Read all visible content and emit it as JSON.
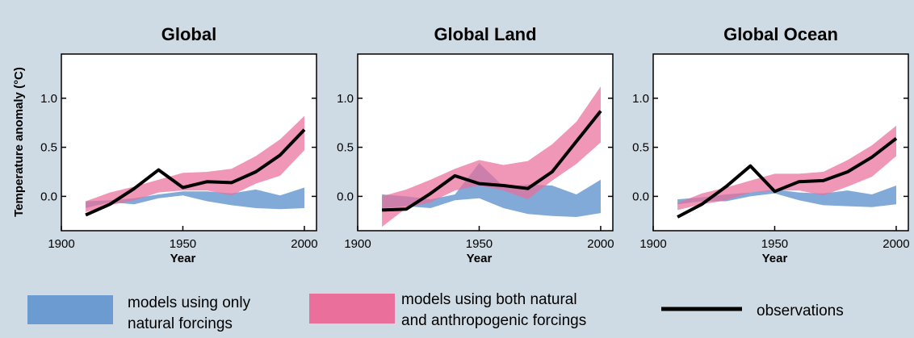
{
  "chart_data": {
    "type": "area",
    "shared": {
      "ylabel": "Temperature anomaly (°C)",
      "xlabel": "Year",
      "xlim": [
        1900,
        2005
      ],
      "ylim": [
        -0.35,
        1.45
      ],
      "xticks": [
        "1900",
        "1950",
        "2000"
      ],
      "yticks": [
        "0.0",
        "0.5",
        "1.0"
      ],
      "colors": {
        "background": "#cfdbe4",
        "natural_band": "#6b9bd1",
        "anthro_band": "#ea6f9b",
        "observations": "#000000"
      }
    },
    "legend": {
      "natural": [
        "models using only",
        "natural forcings"
      ],
      "anthro": [
        "models using both natural",
        "and anthropogenic forcings"
      ],
      "observations": "observations"
    },
    "panels": [
      {
        "title": "Global",
        "x": [
          1910,
          1920,
          1930,
          1940,
          1950,
          1960,
          1970,
          1980,
          1990,
          2000
        ],
        "natural_upper": [
          -0.05,
          -0.04,
          -0.02,
          0.02,
          0.05,
          0.05,
          0.03,
          0.07,
          0.01,
          0.09
        ],
        "natural_lower": [
          -0.12,
          -0.06,
          -0.08,
          -0.02,
          0.01,
          -0.05,
          -0.09,
          -0.12,
          -0.13,
          -0.12
        ],
        "anthro_upper": [
          -0.05,
          0.04,
          0.1,
          0.17,
          0.24,
          0.25,
          0.28,
          0.41,
          0.58,
          0.82
        ],
        "anthro_lower": [
          -0.16,
          -0.09,
          -0.04,
          0.04,
          0.06,
          0.06,
          0.01,
          0.13,
          0.21,
          0.47
        ],
        "observations": [
          -0.19,
          -0.08,
          0.08,
          0.27,
          0.09,
          0.15,
          0.14,
          0.25,
          0.42,
          0.68
        ]
      },
      {
        "title": "Global Land",
        "x": [
          1910,
          1920,
          1930,
          1940,
          1950,
          1960,
          1970,
          1980,
          1990,
          2000
        ],
        "natural_upper": [
          0.02,
          0.0,
          -0.03,
          0.02,
          0.34,
          0.1,
          0.12,
          0.11,
          0.02,
          0.17
        ],
        "natural_lower": [
          -0.12,
          -0.1,
          -0.12,
          -0.04,
          -0.02,
          -0.12,
          -0.18,
          -0.2,
          -0.21,
          -0.17
        ],
        "anthro_upper": [
          0.0,
          0.07,
          0.17,
          0.28,
          0.37,
          0.32,
          0.36,
          0.53,
          0.76,
          1.12
        ],
        "anthro_lower": [
          -0.31,
          -0.12,
          -0.06,
          0.06,
          0.11,
          0.06,
          -0.03,
          0.16,
          0.33,
          0.55
        ],
        "observations": [
          -0.14,
          -0.13,
          0.03,
          0.21,
          0.13,
          0.11,
          0.08,
          0.25,
          0.56,
          0.87
        ],
        "observations_gap_after_index": 1
      },
      {
        "title": "Global Ocean",
        "x": [
          1910,
          1920,
          1930,
          1940,
          1950,
          1960,
          1970,
          1980,
          1990,
          2000
        ],
        "natural_upper": [
          -0.03,
          -0.01,
          0.02,
          0.04,
          0.07,
          0.04,
          0.03,
          0.06,
          0.02,
          0.11
        ],
        "natural_lower": [
          -0.08,
          -0.05,
          -0.05,
          0.0,
          0.03,
          -0.04,
          -0.09,
          -0.1,
          -0.11,
          -0.08
        ],
        "anthro_upper": [
          -0.07,
          0.03,
          0.09,
          0.16,
          0.23,
          0.23,
          0.25,
          0.37,
          0.52,
          0.72
        ],
        "anthro_lower": [
          -0.14,
          -0.08,
          -0.04,
          0.04,
          0.06,
          0.06,
          0.01,
          0.1,
          0.2,
          0.41
        ],
        "observations": [
          -0.21,
          -0.08,
          0.1,
          0.31,
          0.05,
          0.15,
          0.16,
          0.25,
          0.4,
          0.59
        ]
      }
    ]
  }
}
